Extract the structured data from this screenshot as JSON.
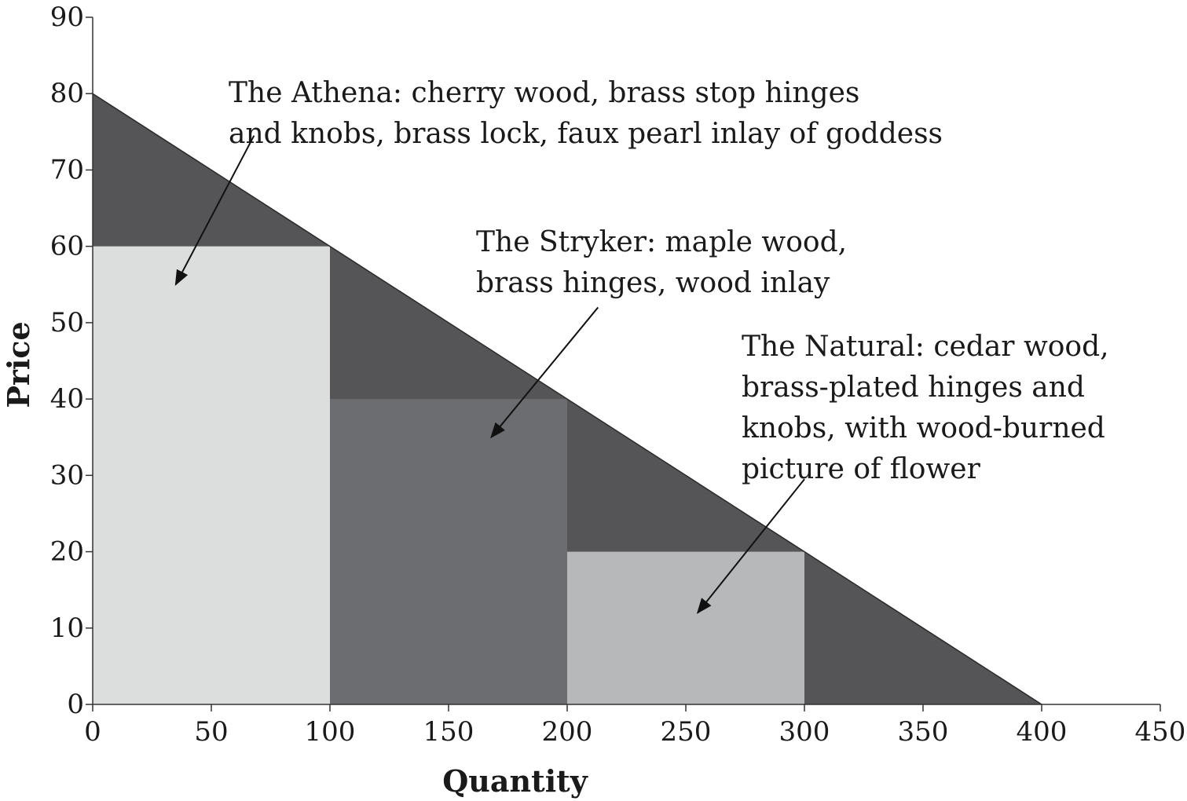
{
  "chart_data": {
    "type": "area",
    "title": "",
    "xlabel": "Quantity",
    "ylabel": "Price",
    "xlim": [
      0,
      450
    ],
    "ylim": [
      0,
      90
    ],
    "x_ticks": [
      0,
      50,
      100,
      150,
      200,
      250,
      300,
      350,
      400,
      450
    ],
    "y_ticks": [
      0,
      10,
      20,
      30,
      40,
      50,
      60,
      70,
      80,
      90
    ],
    "grid": false,
    "demand_curve": {
      "points": [
        [
          0,
          80
        ],
        [
          400,
          0
        ]
      ],
      "color": "#555558"
    },
    "price_blocks": [
      {
        "x_start": 0,
        "x_end": 100,
        "price": 60,
        "color": "#dcdddd"
      },
      {
        "x_start": 100,
        "x_end": 200,
        "price": 40,
        "color": "#6c6d70"
      },
      {
        "x_start": 200,
        "x_end": 300,
        "price": 20,
        "color": "#b6b8b9"
      }
    ],
    "annotations": [
      {
        "lines": [
          "The Athena: cherry wood, brass stop hinges",
          "and knobs, brass lock, faux pearl inlay of goddess"
        ],
        "arrow_from": [
          68,
          74.5
        ],
        "arrow_to": [
          35,
          55
        ]
      },
      {
        "lines": [
          "The Stryker: maple wood,",
          "brass hinges, wood inlay"
        ],
        "arrow_from": [
          213,
          52
        ],
        "arrow_to": [
          168,
          35
        ]
      },
      {
        "lines": [
          "The Natural: cedar wood,",
          "brass-plated hinges and",
          "knobs, with wood-burned",
          "picture of flower"
        ],
        "arrow_from": [
          300,
          29.5
        ],
        "arrow_to": [
          255,
          12
        ]
      }
    ]
  }
}
